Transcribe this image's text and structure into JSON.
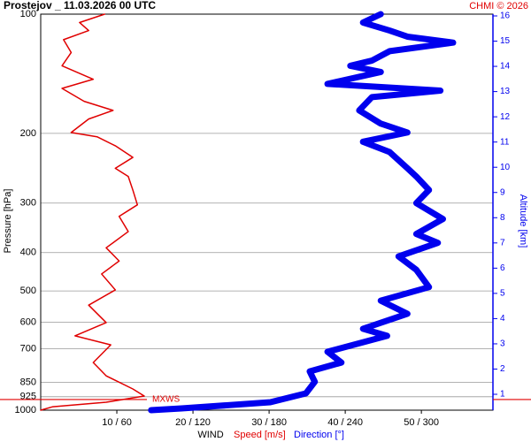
{
  "chart_data": {
    "type": "line",
    "title": "Prostejov _ 11.03.2026 00 UTC",
    "credit": "CHMI © 2026",
    "xlabel": "WIND",
    "ylabel": "Pressure [hPa]",
    "y2label": "Altitude [km]",
    "ylog": true,
    "ylim": [
      1000,
      100
    ],
    "yticks": [
      100,
      200,
      300,
      400,
      500,
      600,
      700,
      850,
      925,
      1000
    ],
    "y2lim": [
      0.37,
      16.07
    ],
    "y2ticks": [
      1,
      2,
      3,
      4,
      5,
      6,
      7,
      8,
      9,
      10,
      11,
      12,
      13,
      14,
      15,
      16
    ],
    "xlim": [
      0,
      59.4
    ],
    "x2lim": [
      0,
      356.4
    ],
    "xticks": [
      {
        "value": 10,
        "label": "10 / 60"
      },
      {
        "value": 20,
        "label": "20 / 120"
      },
      {
        "value": 30,
        "label": "30 / 180"
      },
      {
        "value": 40,
        "label": "40 / 240"
      },
      {
        "value": 50,
        "label": "50 / 300"
      }
    ],
    "grid": true,
    "annotations": [
      {
        "text": "MXWS",
        "pressure": 940
      }
    ],
    "series": [
      {
        "name": "Speed [m/s]",
        "color": "#e00000",
        "width": 1.5,
        "pressure": [
          100,
          105,
          110,
          116,
          125,
          135,
          146,
          154,
          166,
          175,
          184,
          199,
          204,
          215,
          230,
          245,
          257,
          278,
          303,
          324,
          354,
          389,
          420,
          453,
          497,
          543,
          601,
          649,
          684,
          758,
          819,
          884,
          921,
          955,
          980,
          1000
        ],
        "values": [
          8.4,
          5.1,
          6.3,
          3.0,
          4.0,
          2.8,
          6.9,
          2.8,
          5.7,
          9.5,
          6.3,
          4.0,
          7.4,
          9.8,
          12.1,
          9.8,
          11.5,
          12.1,
          12.7,
          10.3,
          11.5,
          8.6,
          10.3,
          8.0,
          9.8,
          6.3,
          8.6,
          4.5,
          9.2,
          6.9,
          8.6,
          12.1,
          13.6,
          8.6,
          1.6,
          0
        ]
      },
      {
        "name": "Direction [°]",
        "color": "#0000ee",
        "width": 7,
        "xaxis": "x2",
        "pressure": [
          100,
          105,
          110,
          114,
          118,
          124,
          131,
          135,
          140,
          150,
          156,
          162,
          175,
          189,
          199,
          210,
          223,
          245,
          257,
          278,
          300,
          329,
          359,
          378,
          409,
          442,
          489,
          529,
          571,
          623,
          649,
          712,
          758,
          798,
          848,
          907,
          955,
          990,
          1000
        ],
        "values": [
          268,
          254,
          275,
          289,
          325,
          275,
          261,
          244,
          268,
          226,
          315,
          261,
          251,
          268,
          289,
          254,
          275,
          289,
          296,
          306,
          296,
          317,
          296,
          313,
          282,
          296,
          306,
          268,
          289,
          254,
          273,
          226,
          237,
          212,
          216,
          209,
          181,
          111,
          87
        ]
      }
    ]
  }
}
